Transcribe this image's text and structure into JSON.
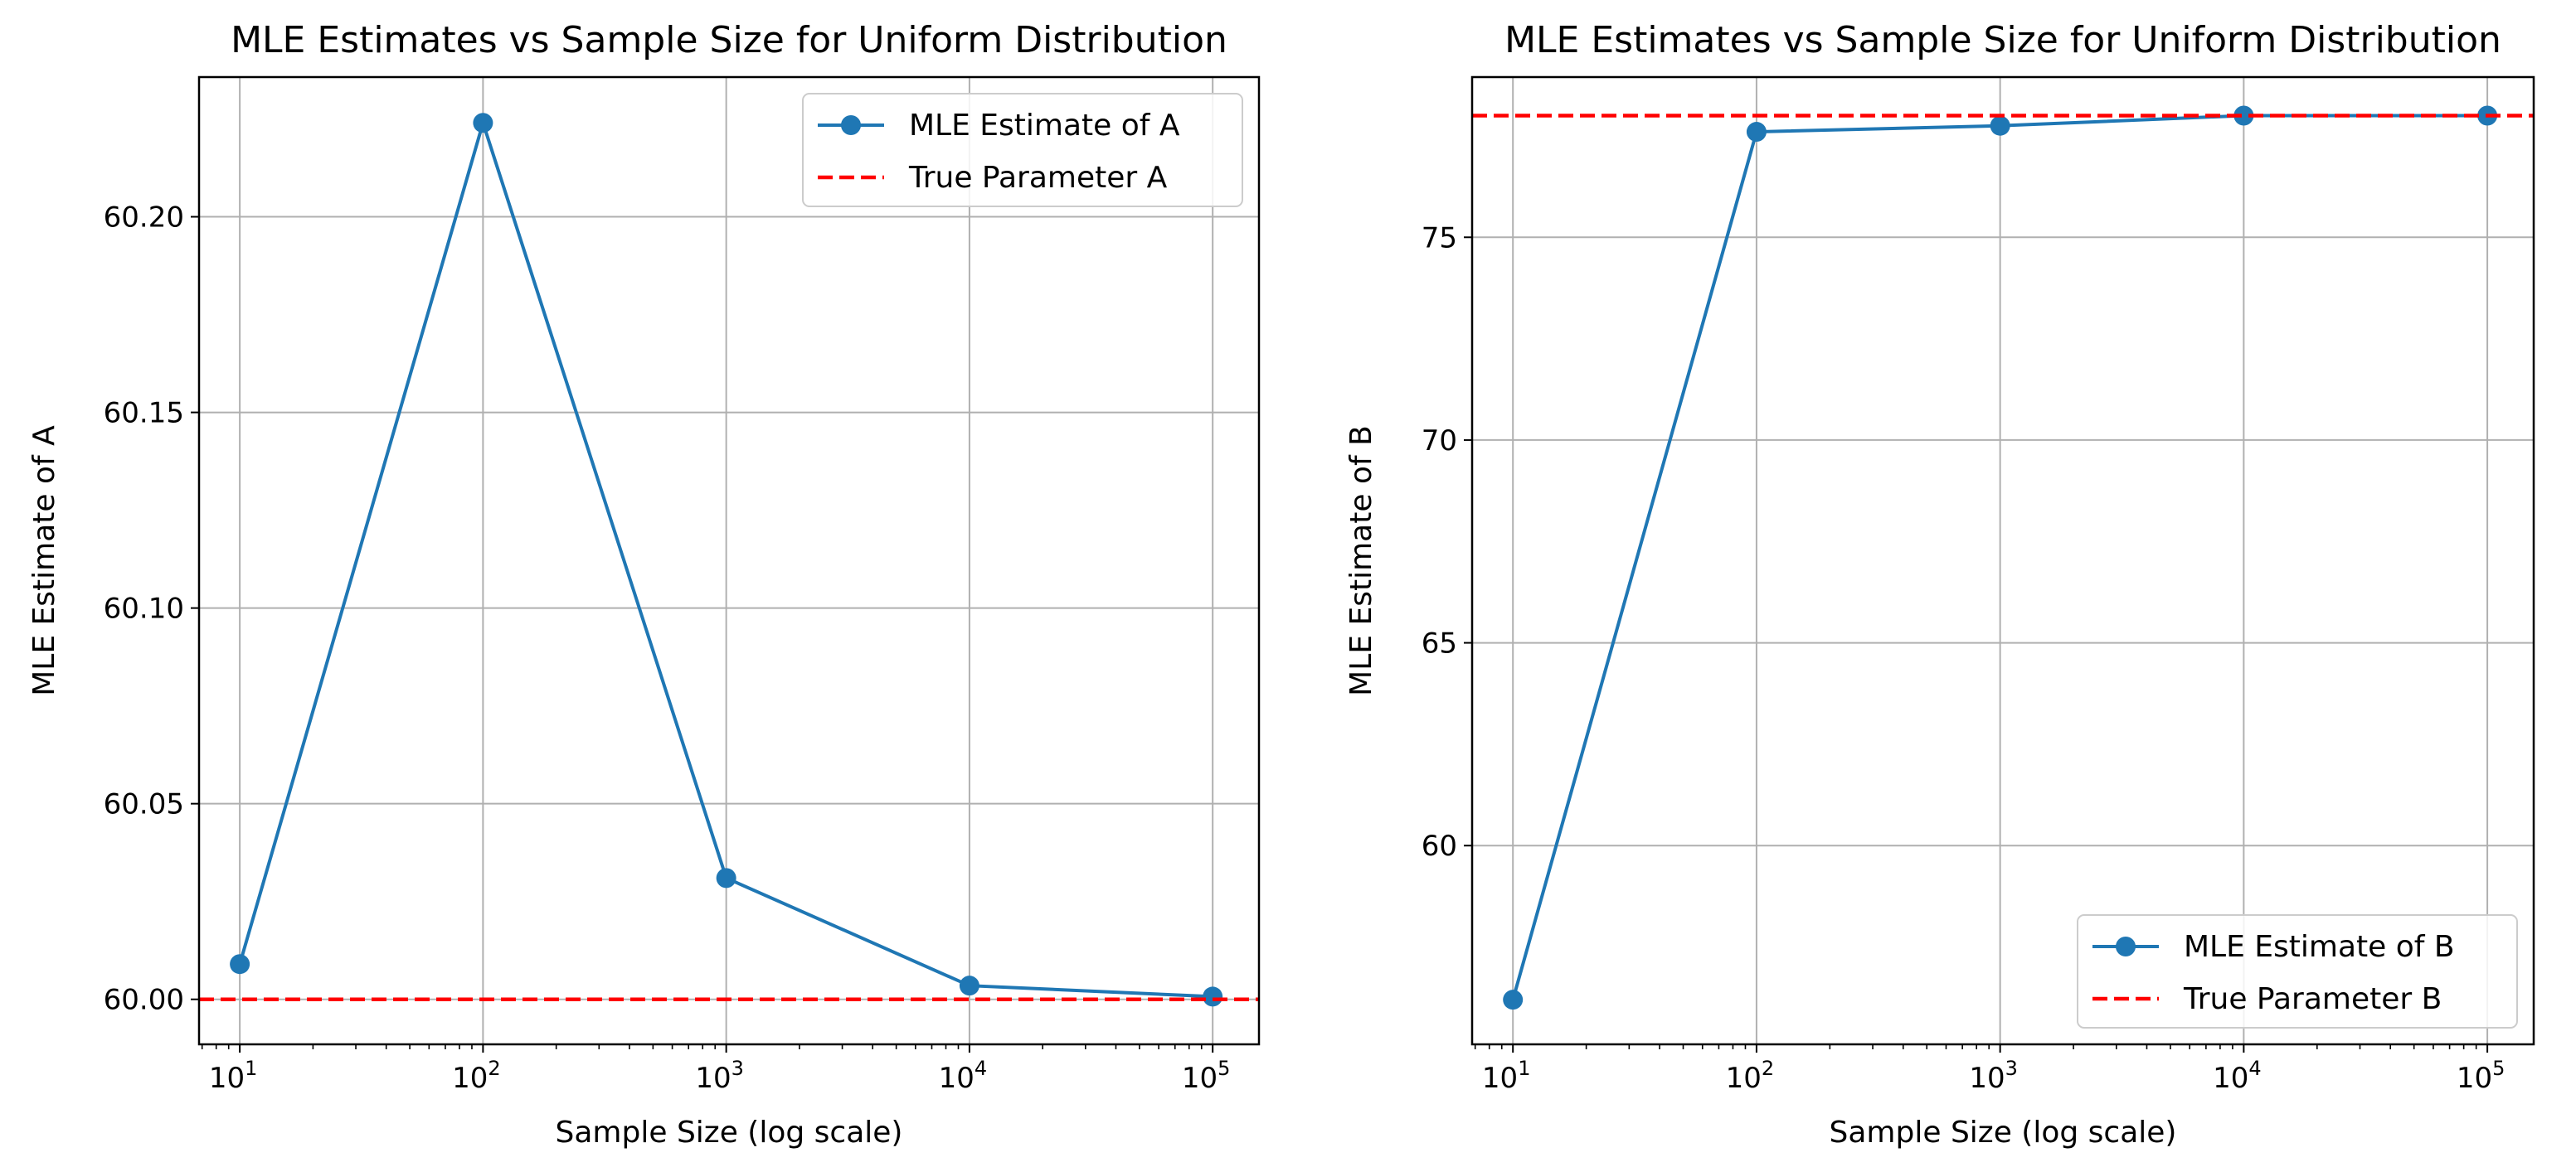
{
  "chart_data": [
    {
      "type": "line",
      "title": "MLE Estimates vs Sample Size for Uniform Distribution",
      "xlabel": "Sample Size (log scale)",
      "ylabel": "MLE Estimate of A",
      "xscale": "log",
      "x": [
        10,
        100,
        1000,
        10000,
        100000
      ],
      "xlim": [
        6.8,
        155000
      ],
      "ylim": [
        59.9885,
        60.2357
      ],
      "xticks": [
        1,
        2,
        3,
        4,
        5
      ],
      "yticks": [
        "60.00",
        "60.05",
        "60.10",
        "60.15",
        "60.20"
      ],
      "grid": true,
      "legend_position": "top-right",
      "series": [
        {
          "name": "MLE Estimate of A",
          "style": "solid-marker",
          "color": "#1f77b4",
          "values": [
            60.009,
            60.224,
            60.031,
            60.0035,
            60.0007
          ]
        },
        {
          "name": "True Parameter A",
          "style": "dashed-hline",
          "color": "#ff0000",
          "value": 60.0
        }
      ]
    },
    {
      "type": "line",
      "title": "MLE Estimates vs Sample Size for Uniform Distribution",
      "xlabel": "Sample Size (log scale)",
      "ylabel": "MLE Estimate of B",
      "xscale": "log",
      "x": [
        10,
        100,
        1000,
        10000,
        100000
      ],
      "xlim": [
        6.8,
        155000
      ],
      "ylim": [
        55.1,
        78.95
      ],
      "xticks": [
        1,
        2,
        3,
        4,
        5
      ],
      "yticks": [
        "60",
        "65",
        "70",
        "75"
      ],
      "grid": true,
      "legend_position": "bottom-right",
      "series": [
        {
          "name": "MLE Estimate of B",
          "style": "solid-marker",
          "color": "#1f77b4",
          "values": [
            56.2,
            77.6,
            77.75,
            78.0,
            78.0
          ]
        },
        {
          "name": "True Parameter B",
          "style": "dashed-hline",
          "color": "#ff0000",
          "value": 78.0
        }
      ]
    }
  ]
}
